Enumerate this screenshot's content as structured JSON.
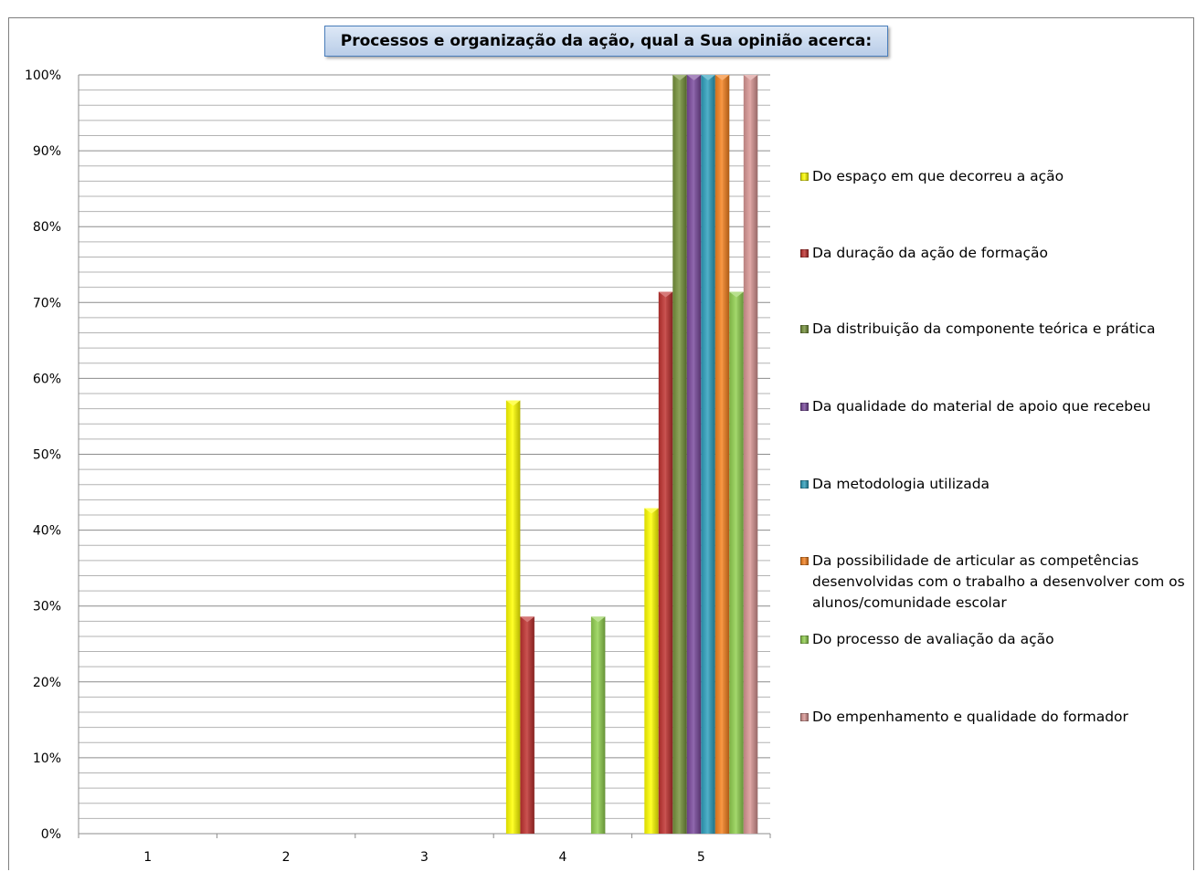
{
  "chart_data": {
    "type": "bar",
    "title": "Processos e organização da ação, qual a Sua opinião acerca:",
    "categories": [
      "1",
      "2",
      "3",
      "4",
      "5"
    ],
    "ylim": [
      0,
      100
    ],
    "y_ticks": [
      "0%",
      "10%",
      "20%",
      "30%",
      "40%",
      "50%",
      "60%",
      "70%",
      "80%",
      "90%",
      "100%"
    ],
    "grid": true,
    "legend_position": "right",
    "series": [
      {
        "name": "Do espaço em que decorreu a ação",
        "color": "#ffff00",
        "values": [
          0,
          0,
          0,
          57.1,
          42.9
        ]
      },
      {
        "name": "Da duração da ação de formação",
        "color": "#c0312f",
        "values": [
          0,
          0,
          0,
          28.6,
          71.4
        ]
      },
      {
        "name": "Da distribuição da componente teórica e prática",
        "color": "#77933c",
        "values": [
          0,
          0,
          0,
          0,
          100
        ]
      },
      {
        "name": "Da qualidade do material de apoio que recebeu",
        "color": "#7a4a9d",
        "values": [
          0,
          0,
          0,
          0,
          100
        ]
      },
      {
        "name": "Da metodologia utilizada",
        "color": "#2ea0bd",
        "values": [
          0,
          0,
          0,
          0,
          100
        ]
      },
      {
        "name": "Da possibilidade de articular as competências desenvolvidas com o trabalho a desenvolver com os alunos/comunidade escolar",
        "color": "#f58220",
        "values": [
          0,
          0,
          0,
          0,
          100
        ]
      },
      {
        "name": "Do processo de avaliação da ação",
        "color": "#92d050",
        "values": [
          0,
          0,
          0,
          28.6,
          71.4
        ]
      },
      {
        "name": "Do empenhamento e qualidade do formador",
        "color": "#d99694",
        "values": [
          0,
          0,
          0,
          0,
          100
        ]
      }
    ]
  }
}
